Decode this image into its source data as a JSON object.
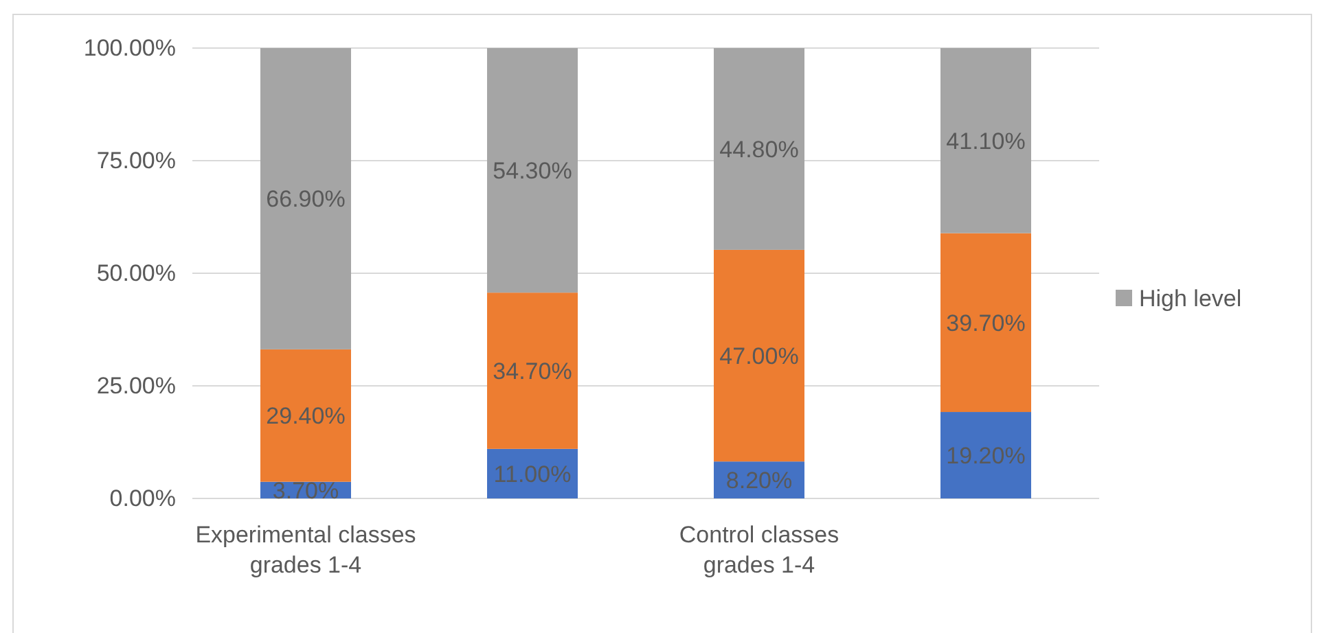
{
  "chart_data": {
    "type": "bar",
    "stacked": true,
    "categories": [
      "Experimental classes grades 1-4",
      null,
      "Control classes grades 1-4",
      null
    ],
    "series": [
      {
        "color": "#4472c4",
        "values": [
          3.7,
          11.0,
          8.2,
          19.2
        ],
        "value_labels": [
          "3.70%",
          "11.00%",
          "8.20%",
          "19.20%"
        ]
      },
      {
        "color": "#ed7d31",
        "values": [
          29.4,
          34.7,
          47.0,
          39.7
        ],
        "value_labels": [
          "29.40%",
          "34.70%",
          "47.00%",
          "39.70%"
        ]
      },
      {
        "name": "High level",
        "color": "#a5a5a5",
        "values": [
          66.9,
          54.3,
          44.8,
          41.1
        ],
        "value_labels": [
          "66.90%",
          "54.30%",
          "44.80%",
          "41.10%"
        ]
      }
    ],
    "ylim": [
      0,
      100
    ],
    "yticks": [
      {
        "value": 0,
        "label": "0.00%"
      },
      {
        "value": 25,
        "label": "25.00%"
      },
      {
        "value": 50,
        "label": "50.00%"
      },
      {
        "value": 75,
        "label": "75.00%"
      },
      {
        "value": 100,
        "label": "100.00%"
      }
    ],
    "grid": "y",
    "legend": "right"
  }
}
